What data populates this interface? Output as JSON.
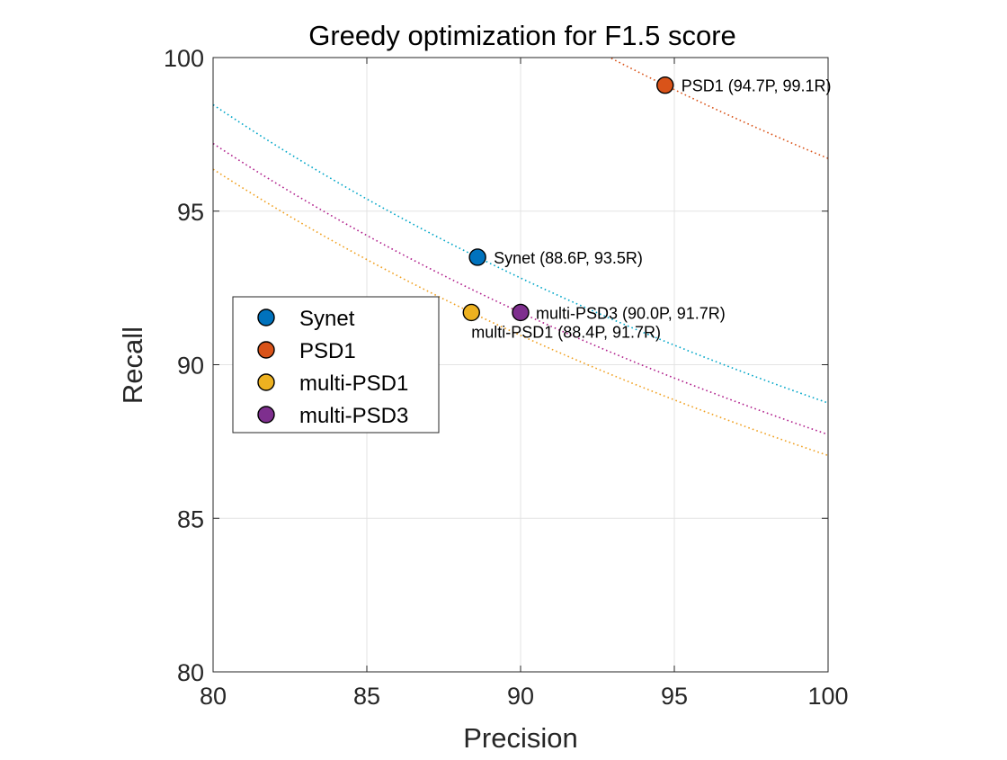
{
  "chart_data": {
    "type": "scatter",
    "title": "Greedy optimization for F1.5 score",
    "xlabel": "Precision",
    "ylabel": "Recall",
    "xlim": [
      80,
      100
    ],
    "ylim": [
      80,
      100
    ],
    "xticks": [
      80,
      85,
      90,
      95,
      100
    ],
    "yticks": [
      80,
      85,
      90,
      95,
      100
    ],
    "grid": true,
    "legend_position": "center-left",
    "beta": 1.5,
    "points": [
      {
        "name": "Synet",
        "x": 88.6,
        "y": 93.5,
        "color": "#0072BD",
        "label": "Synet (88.6P, 93.5R)"
      },
      {
        "name": "PSD1",
        "x": 94.7,
        "y": 99.1,
        "color": "#D95319",
        "label": "PSD1 (94.7P, 99.1R)"
      },
      {
        "name": "multi-PSD1",
        "x": 88.4,
        "y": 91.7,
        "color": "#EDB120",
        "label": "multi-PSD1 (88.4P, 91.7R)"
      },
      {
        "name": "multi-PSD3",
        "x": 90.0,
        "y": 91.7,
        "color": "#7E2F8E",
        "label": "multi-PSD3 (90.0P, 91.7R)"
      }
    ],
    "iso_curve_colors": {
      "Synet": "#00A6C8",
      "PSD1": "#D95319",
      "multi-PSD1": "#F0A020",
      "multi-PSD3": "#B0208C"
    }
  }
}
